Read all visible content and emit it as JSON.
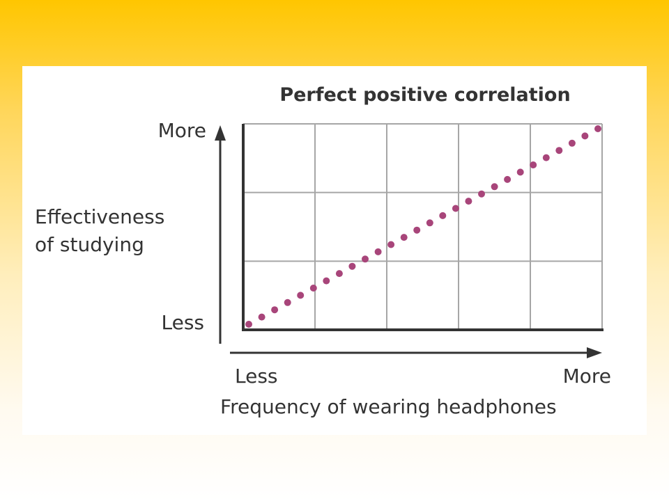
{
  "chart_data": {
    "type": "scatter",
    "title": "Perfect positive correlation",
    "xlabel": "Frequency of wearing headphones",
    "ylabel_line1": "Effectiveness",
    "ylabel_line2": "of studying",
    "x_axis_low": "Less",
    "x_axis_high": "More",
    "y_axis_low": "Less",
    "y_axis_high": "More",
    "grid": true,
    "grid_columns": 5,
    "grid_rows": 3,
    "xlim": [
      0,
      1
    ],
    "ylim": [
      0,
      1
    ],
    "point_count": 28,
    "point_color": "#a8457a",
    "axis_color": "#333333",
    "grid_color": "#a6a6a6"
  }
}
